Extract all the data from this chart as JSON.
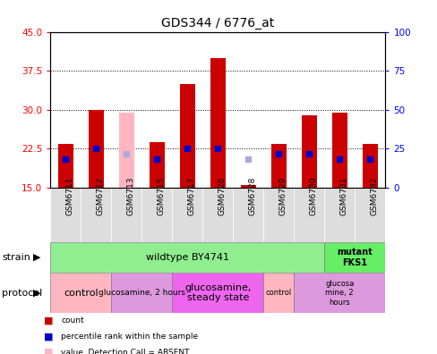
{
  "title": "GDS344 / 6776_at",
  "samples": [
    "GSM6711",
    "GSM6712",
    "GSM6713",
    "GSM6715",
    "GSM6717",
    "GSM6726",
    "GSM6728",
    "GSM6729",
    "GSM6730",
    "GSM6731",
    "GSM6732"
  ],
  "count_values": [
    23.5,
    30.0,
    null,
    23.8,
    35.0,
    40.0,
    15.5,
    23.5,
    29.0,
    29.5,
    23.5
  ],
  "rank_values": [
    20.5,
    22.5,
    null,
    20.5,
    22.5,
    22.5,
    null,
    21.5,
    21.5,
    20.5,
    20.5
  ],
  "absent_count": [
    null,
    null,
    29.5,
    null,
    null,
    null,
    null,
    null,
    null,
    null,
    null
  ],
  "absent_rank": [
    null,
    null,
    21.5,
    null,
    null,
    null,
    20.5,
    null,
    null,
    null,
    null
  ],
  "ylim_left": [
    15,
    45
  ],
  "ylim_right": [
    0,
    100
  ],
  "yticks_left": [
    15,
    22.5,
    30,
    37.5,
    45
  ],
  "yticks_right": [
    0,
    25,
    50,
    75,
    100
  ],
  "count_color": "#CC0000",
  "rank_color": "#0000CC",
  "absent_count_color": "#FFB6C1",
  "absent_rank_color": "#AAAADD",
  "bar_width": 0.5,
  "background_color": "#FFFFFF",
  "plot_bg_color": "#FFFFFF",
  "wildtype_color": "#90EE90",
  "mutant_color": "#66EE66",
  "control_color": "#FFB6C1",
  "gluco_color": "#DD99DD",
  "gluco_ss_color": "#EE66EE",
  "tick_bg_color": "#CCCCCC"
}
